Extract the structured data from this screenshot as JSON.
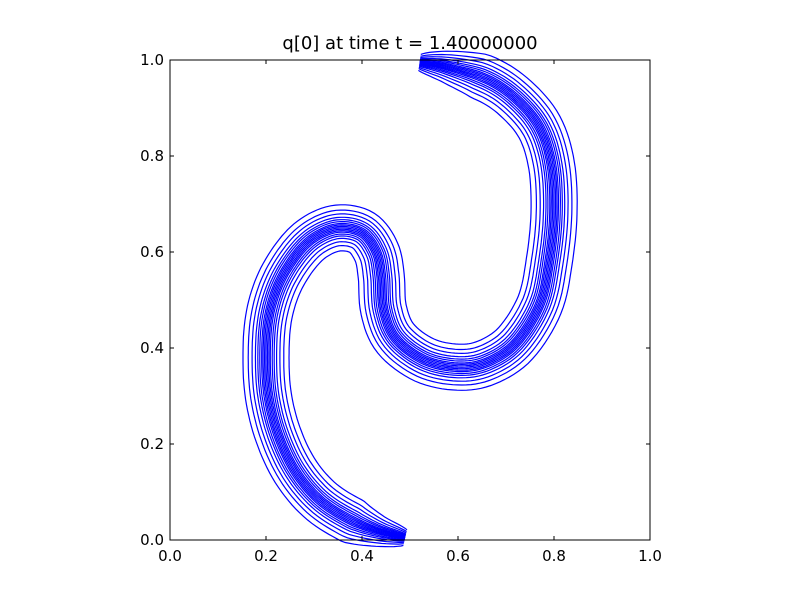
{
  "chart_data": {
    "type": "contour",
    "title": "q[0] at time t =     1.40000000",
    "xlabel": "",
    "ylabel": "",
    "xlim": [
      0.0,
      1.0
    ],
    "ylim": [
      0.0,
      1.0
    ],
    "xticks": [
      0.0,
      0.2,
      0.4,
      0.6,
      0.8,
      1.0
    ],
    "yticks": [
      0.0,
      0.2,
      0.4,
      0.6,
      0.8,
      1.0
    ],
    "xtick_labels": [
      "0.0",
      "0.2",
      "0.4",
      "0.6",
      "0.8",
      "1.0"
    ],
    "ytick_labels": [
      "0.0",
      "0.2",
      "0.4",
      "0.6",
      "0.8",
      "1.0"
    ],
    "grid": false,
    "line_color": "#0000ff",
    "series": [
      {
        "centerline": [
          [
            0.49,
            0.005
          ],
          [
            0.43,
            0.02
          ],
          [
            0.37,
            0.045
          ],
          [
            0.31,
            0.085
          ],
          [
            0.26,
            0.145
          ],
          [
            0.225,
            0.22
          ],
          [
            0.205,
            0.3
          ],
          [
            0.2,
            0.38
          ],
          [
            0.205,
            0.46
          ],
          [
            0.225,
            0.53
          ],
          [
            0.26,
            0.59
          ],
          [
            0.3,
            0.63
          ],
          [
            0.35,
            0.65
          ],
          [
            0.4,
            0.64
          ],
          [
            0.43,
            0.6
          ],
          [
            0.44,
            0.55
          ],
          [
            0.445,
            0.48
          ],
          [
            0.47,
            0.42
          ],
          [
            0.53,
            0.375
          ],
          [
            0.6,
            0.36
          ],
          [
            0.66,
            0.37
          ],
          [
            0.72,
            0.41
          ],
          [
            0.77,
            0.49
          ],
          [
            0.79,
            0.58
          ],
          [
            0.8,
            0.68
          ],
          [
            0.795,
            0.78
          ],
          [
            0.77,
            0.86
          ],
          [
            0.72,
            0.92
          ],
          [
            0.66,
            0.96
          ],
          [
            0.58,
            0.985
          ],
          [
            0.52,
            0.995
          ]
        ]
      }
    ],
    "contour_offsets": [
      -0.048,
      -0.037,
      -0.029,
      -0.022,
      -0.017,
      -0.013,
      -0.009,
      -0.006,
      -0.003,
      0.0,
      0.003,
      0.006,
      0.009,
      0.013,
      0.017,
      0.022,
      0.029,
      0.037,
      0.048
    ]
  }
}
